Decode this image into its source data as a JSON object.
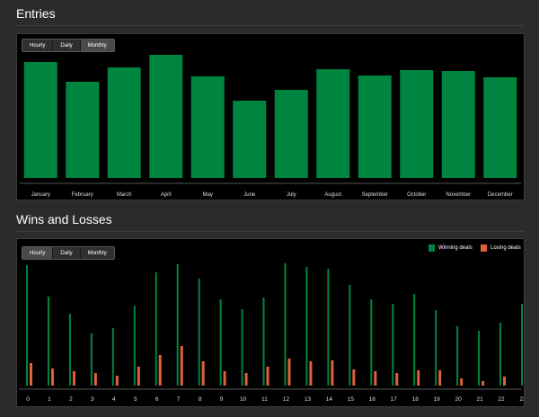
{
  "colors": {
    "winning": "#008540",
    "losing": "#e0623a",
    "entries_bar": "#008540",
    "axis": "#555555",
    "tick_label": "#dddddd"
  },
  "entries": {
    "title": "Entries",
    "toggle": {
      "options": [
        "Hourly",
        "Daily",
        "Monthly"
      ],
      "selected": "Monthly"
    }
  },
  "wins_losses": {
    "title": "Wins and Losses",
    "toggle": {
      "options": [
        "Hourly",
        "Daily",
        "Monthly"
      ],
      "selected": "Hourly"
    },
    "legend": {
      "winning": "Winning deals",
      "losing": "Losing deals"
    }
  },
  "chart_data": [
    {
      "type": "bar",
      "categories": [
        "January",
        "February",
        "March",
        "April",
        "May",
        "June",
        "July",
        "August",
        "September",
        "October",
        "November",
        "December"
      ],
      "values": [
        129,
        107,
        123,
        137,
        113,
        86,
        98,
        121,
        114,
        120,
        119,
        112
      ],
      "ylim": [
        0,
        150
      ],
      "grid": false,
      "xlabel": "",
      "ylabel": ""
    },
    {
      "type": "bar",
      "x": [
        0,
        1,
        2,
        3,
        4,
        5,
        6,
        7,
        8,
        9,
        10,
        11,
        12,
        13,
        14,
        15,
        16,
        17,
        18,
        19,
        20,
        21,
        22,
        23
      ],
      "series": [
        {
          "name": "Winning deals",
          "values": [
            134,
            99,
            80,
            58,
            64,
            89,
            126,
            135,
            119,
            96,
            85,
            98,
            136,
            132,
            130,
            112,
            96,
            91,
            102,
            84,
            66,
            61,
            70,
            91
          ]
        },
        {
          "name": "Losing deals",
          "values": [
            25,
            19,
            16,
            14,
            11,
            21,
            34,
            44,
            27,
            16,
            14,
            21,
            30,
            27,
            28,
            18,
            16,
            14,
            17,
            17,
            8,
            5,
            10,
            16
          ]
        }
      ],
      "ylim": [
        0,
        140
      ],
      "grid": false,
      "legend_position": "top-right",
      "xlabel": "",
      "ylabel": ""
    }
  ]
}
